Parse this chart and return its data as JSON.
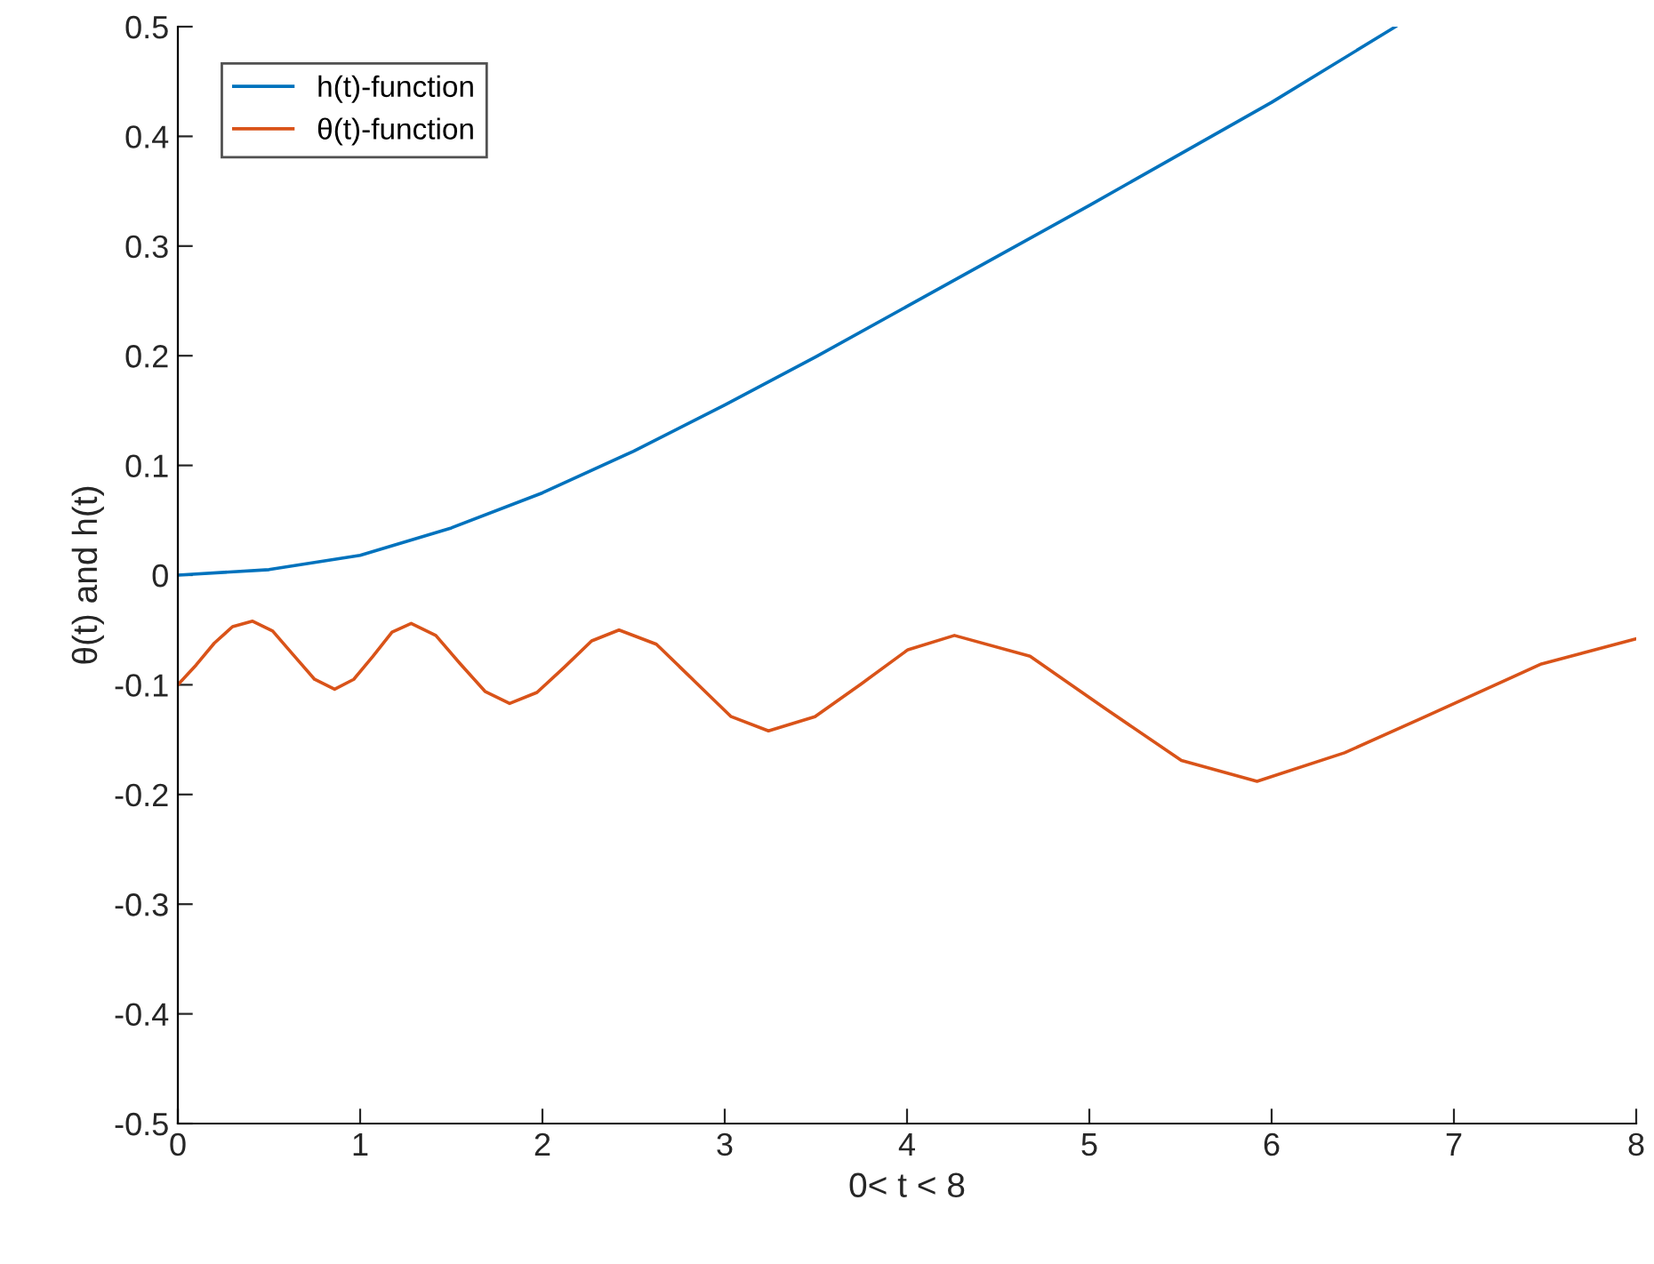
{
  "chart_data": {
    "type": "line",
    "xlabel": "0< t < 8",
    "ylabel": "θ(t) and h(t)",
    "xlim": [
      0,
      8
    ],
    "xticks": [
      0,
      1,
      2,
      3,
      4,
      5,
      6,
      7,
      8
    ],
    "ylim": [
      -0.5,
      0.5
    ],
    "yticks": [
      -0.5,
      -0.4,
      -0.3,
      -0.2,
      -0.1,
      0,
      0.1,
      0.2,
      0.3,
      0.4,
      0.5
    ],
    "grid": false,
    "legend": "top left",
    "marker": "none",
    "line_style": "solid",
    "series": [
      {
        "name": "h(t)-function",
        "color": "#0072bd",
        "x": [
          0,
          0.5,
          1,
          1.5,
          2,
          2.5,
          3,
          3.5,
          4,
          4.5,
          5,
          5.5,
          6,
          6.68
        ],
        "values": [
          0,
          0.005,
          0.018,
          0.043,
          0.075,
          0.113,
          0.155,
          0.199,
          0.245,
          0.291,
          0.337,
          0.384,
          0.431,
          0.5
        ]
      },
      {
        "name": "θ(t)-function",
        "color": "#d95319",
        "x": [
          0,
          0.1,
          0.2,
          0.3,
          0.41,
          0.52,
          0.635,
          0.75,
          0.86,
          0.965,
          1.07,
          1.175,
          1.28,
          1.415,
          1.55,
          1.685,
          1.82,
          1.97,
          2.12,
          2.27,
          2.42,
          2.625,
          2.83,
          3.035,
          3.24,
          3.495,
          3.75,
          4.005,
          4.26,
          4.675,
          5.09,
          5.505,
          5.92,
          6.4,
          6.83,
          7.48,
          8.0
        ],
        "values": [
          -0.1,
          -0.082,
          -0.062,
          -0.047,
          -0.042,
          -0.051,
          -0.073,
          -0.095,
          -0.104,
          -0.095,
          -0.074,
          -0.052,
          -0.044,
          -0.055,
          -0.081,
          -0.106,
          -0.117,
          -0.107,
          -0.084,
          -0.06,
          -0.05,
          -0.063,
          -0.096,
          -0.129,
          -0.142,
          -0.129,
          -0.099,
          -0.068,
          -0.055,
          -0.074,
          -0.122,
          -0.169,
          -0.188,
          -0.162,
          -0.13,
          -0.081,
          -0.058
        ]
      }
    ]
  }
}
